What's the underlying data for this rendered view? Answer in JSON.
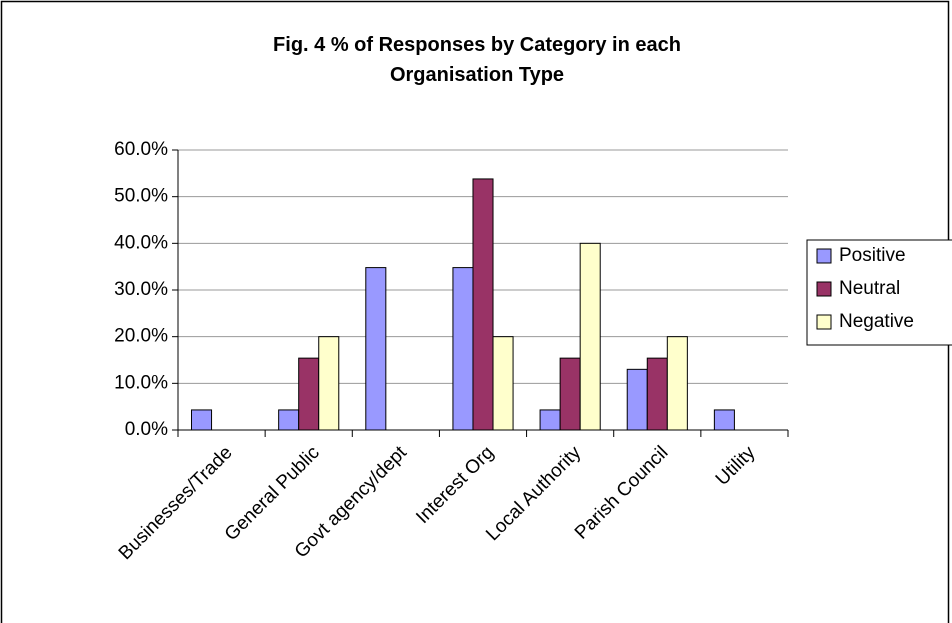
{
  "chart_data": {
    "type": "bar",
    "title": "Fig. 4  % of Responses by Category in each Organisation Type",
    "categories": [
      "Businesses/Trade",
      "General Public",
      "Govt agency/dept",
      "Interest Org",
      "Local Authority",
      "Parish Council",
      "Utility"
    ],
    "series": [
      {
        "name": "Positive",
        "color": "#9999ff",
        "values": [
          4.3,
          4.3,
          34.8,
          34.8,
          4.3,
          13.0,
          4.3
        ]
      },
      {
        "name": "Neutral",
        "color": "#993366",
        "values": [
          0,
          15.4,
          0,
          53.8,
          15.4,
          15.4,
          0
        ]
      },
      {
        "name": "Negative",
        "color": "#ffffcc",
        "values": [
          0,
          20,
          0,
          20,
          40,
          20,
          0
        ]
      }
    ],
    "ylim": [
      0,
      60
    ],
    "yticks": [
      {
        "value": 0,
        "label": "0.0%"
      },
      {
        "value": 10,
        "label": "10.0%"
      },
      {
        "value": 20,
        "label": "20.0%"
      },
      {
        "value": 30,
        "label": "30.0%"
      },
      {
        "value": 40,
        "label": "40.0%"
      },
      {
        "value": 50,
        "label": "50.0%"
      },
      {
        "value": 60,
        "label": "60.0%"
      }
    ],
    "grid": true,
    "legend": "right"
  }
}
